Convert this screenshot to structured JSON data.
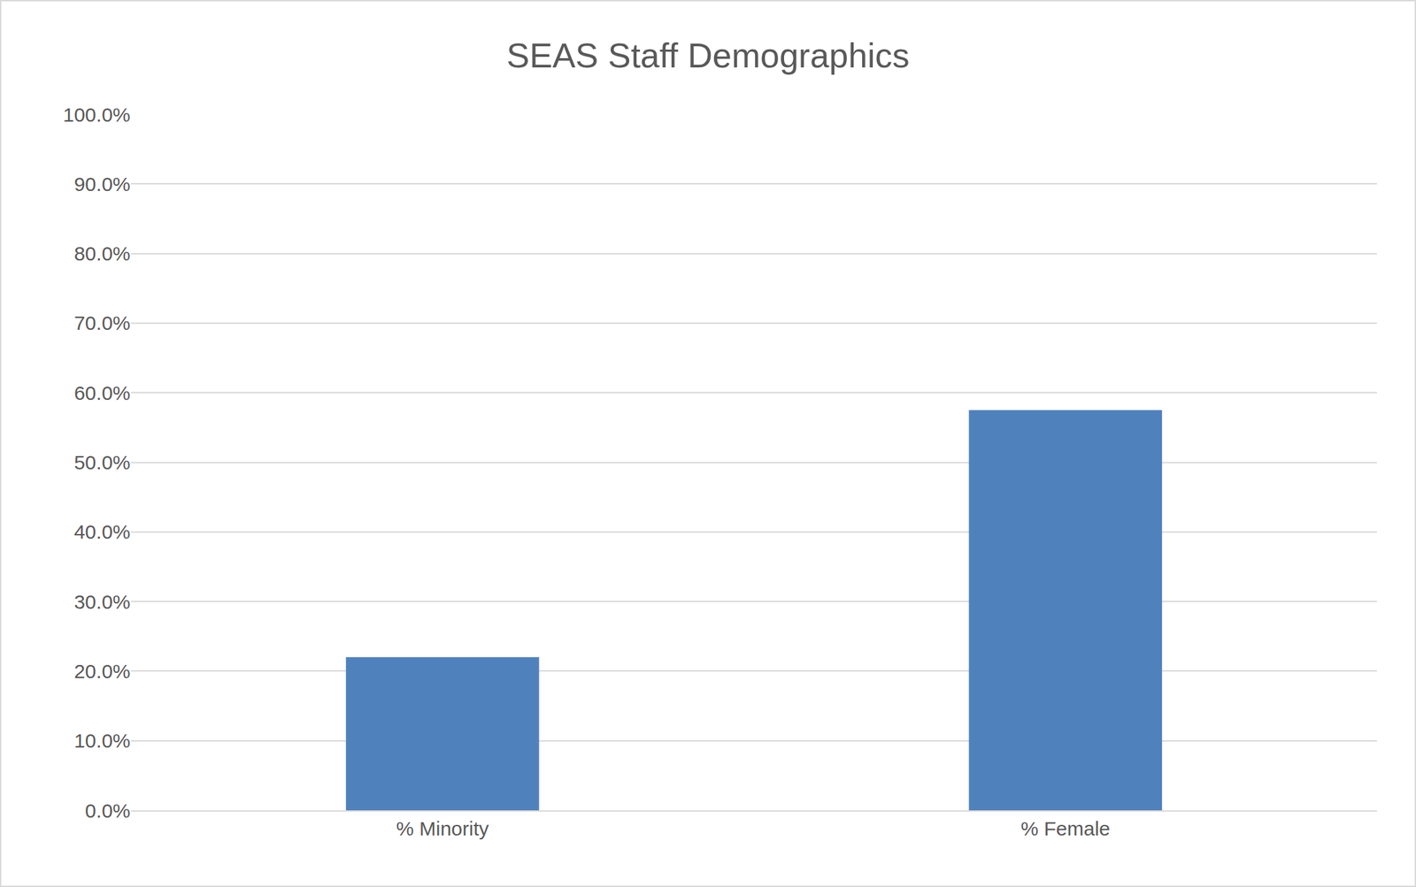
{
  "chart_data": {
    "type": "bar",
    "title": "SEAS Staff Demographics",
    "categories": [
      "% Minority",
      "% Female"
    ],
    "values": [
      22.0,
      57.5
    ],
    "color": "#4f81bd",
    "ylim": [
      0,
      100
    ],
    "yticks": [
      {
        "value": 0,
        "label": "0.0%"
      },
      {
        "value": 10,
        "label": "10.0%"
      },
      {
        "value": 20,
        "label": "20.0%"
      },
      {
        "value": 30,
        "label": "30.0%"
      },
      {
        "value": 40,
        "label": "40.0%"
      },
      {
        "value": 50,
        "label": "50.0%"
      },
      {
        "value": 60,
        "label": "60.0%"
      },
      {
        "value": 70,
        "label": "70.0%"
      },
      {
        "value": 80,
        "label": "80.0%"
      },
      {
        "value": 90,
        "label": "90.0%"
      },
      {
        "value": 100,
        "label": "100.0%"
      }
    ],
    "grid": true
  }
}
